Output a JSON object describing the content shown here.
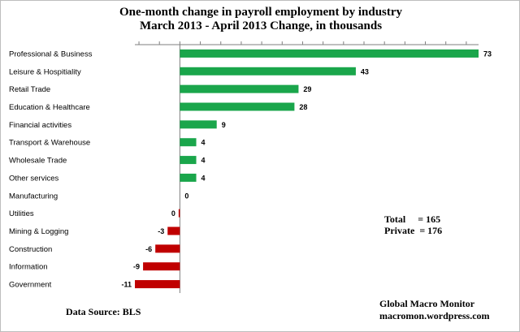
{
  "chart_data": {
    "type": "bar",
    "orientation": "horizontal",
    "title": "One-month change in payroll employment by industry",
    "subtitle": "March 2013 - April 2013  Change, in thousands",
    "categories": [
      "Professional & Business",
      "Leisure & Hospitiality",
      "Retail Trade",
      "Education & Healthcare",
      "Financial activities",
      "Transport & Warehouse",
      "Wholesale Trade",
      "Other services",
      "Manufacturing",
      "Utilities",
      "Mining & Logging",
      "Construction",
      "Information",
      "Government"
    ],
    "values": [
      73,
      43,
      29,
      28,
      9,
      4,
      4,
      4,
      0,
      -0.3,
      -3,
      -6,
      -9,
      -11
    ],
    "value_labels": [
      "73",
      "43",
      "29",
      "28",
      "9",
      "4",
      "4",
      "4",
      "0",
      "0",
      "-3",
      "-6",
      "-9",
      "-11"
    ],
    "xlim": [
      -11,
      73
    ],
    "x_tick_step": 5,
    "grid": false,
    "legend": "none",
    "colors": {
      "positive": "#1aa64b",
      "negative": "#c00000",
      "axis": "#7f7f7f"
    }
  },
  "annotations": {
    "totals": {
      "total_line": "Total     = 165",
      "private_line": "Private  = 176"
    },
    "source": "Data Source:  BLS",
    "credit_name": "Global Macro Monitor",
    "credit_site": "macromon.wordpress.com"
  }
}
